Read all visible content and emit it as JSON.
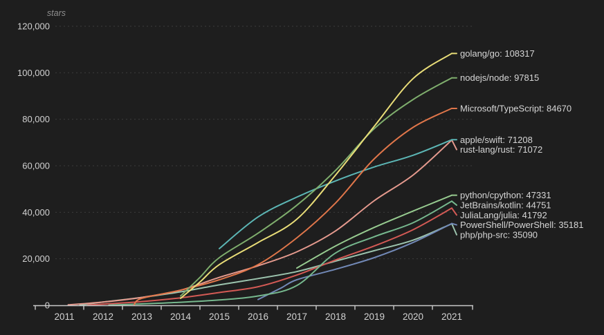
{
  "chart": {
    "y_axis_title": "stars",
    "colors": {
      "background": "#1e1e1e",
      "axis_line": "#c9c9c9",
      "grid_line": "#3c3c3c",
      "tick_label": "#d2d2d2",
      "series_label": "#d6d6d6",
      "axis_title": "#8e8e8e"
    }
  },
  "chart_data": {
    "type": "line",
    "title": "",
    "xlabel": "",
    "ylabel": "stars",
    "grid": "horizontal-dashed",
    "legend_position": "right-end-labels",
    "xlim": [
      2010.2,
      2021.55
    ],
    "ylim": [
      0,
      120000
    ],
    "x_ticks": [
      "2011",
      "2012",
      "2013",
      "2014",
      "2015",
      "2016",
      "2017",
      "2018",
      "2019",
      "2020",
      "2021"
    ],
    "x_tick_years": [
      2011,
      2012,
      2013,
      2014,
      2015,
      2016,
      2017,
      2018,
      2019,
      2020,
      2021
    ],
    "y_ticks": [
      {
        "value": 0,
        "label": "0"
      },
      {
        "value": 20000,
        "label": "20,000"
      },
      {
        "value": 40000,
        "label": "40,000"
      },
      {
        "value": 60000,
        "label": "60,000"
      },
      {
        "value": 80000,
        "label": "80,000"
      },
      {
        "value": 100000,
        "label": "100,000"
      },
      {
        "value": 120000,
        "label": "120,000"
      }
    ],
    "series": [
      {
        "name": "golang/go",
        "final_value": 108317,
        "end_label": "golang/go: 108317",
        "color": "#e9dd78",
        "points": [
          [
            2014,
            3000
          ],
          [
            2014.5,
            10000
          ],
          [
            2015,
            17500
          ],
          [
            2016,
            27000
          ],
          [
            2017,
            37000
          ],
          [
            2018,
            56000
          ],
          [
            2019,
            77000
          ],
          [
            2020,
            97500
          ],
          [
            2021,
            108317
          ]
        ]
      },
      {
        "name": "nodejs/node",
        "final_value": 97815,
        "end_label": "nodejs/node: 97815",
        "color": "#7fae6d",
        "points": [
          [
            2014,
            4000
          ],
          [
            2014.5,
            12000
          ],
          [
            2015,
            20500
          ],
          [
            2016,
            31000
          ],
          [
            2017,
            43000
          ],
          [
            2018,
            58000
          ],
          [
            2019,
            76000
          ],
          [
            2020,
            88500
          ],
          [
            2021,
            97815
          ]
        ]
      },
      {
        "name": "Microsoft/TypeScript",
        "final_value": 84670,
        "end_label": "Microsoft/TypeScript: 84670",
        "color": "#e0764a",
        "points": [
          [
            2012.8,
            300
          ],
          [
            2013,
            3000
          ],
          [
            2014,
            6500
          ],
          [
            2015,
            11000
          ],
          [
            2016,
            17500
          ],
          [
            2017,
            29000
          ],
          [
            2018,
            44000
          ],
          [
            2019,
            63000
          ],
          [
            2020,
            76500
          ],
          [
            2021,
            84670
          ]
        ]
      },
      {
        "name": "apple/swift",
        "final_value": 71208,
        "end_label": "apple/swift: 71208",
        "color": "#5cb6b5",
        "points": [
          [
            2015,
            24400
          ],
          [
            2016,
            38000
          ],
          [
            2017,
            46500
          ],
          [
            2018,
            53500
          ],
          [
            2019,
            59500
          ],
          [
            2020,
            64500
          ],
          [
            2021,
            71208
          ]
        ]
      },
      {
        "name": "rust-lang/rust",
        "final_value": 71072,
        "end_label": "rust-lang/rust: 71072",
        "color": "#e59a8e",
        "points": [
          [
            2011.1,
            200
          ],
          [
            2012,
            1400
          ],
          [
            2013,
            3400
          ],
          [
            2014,
            6500
          ],
          [
            2015,
            12000
          ],
          [
            2016,
            17000
          ],
          [
            2017,
            23000
          ],
          [
            2018,
            32000
          ],
          [
            2019,
            45000
          ],
          [
            2020,
            56000
          ],
          [
            2021,
            71072
          ]
        ]
      },
      {
        "name": "python/cpython",
        "final_value": 47331,
        "end_label": "python/cpython: 47331",
        "color": "#97cb90",
        "points": [
          [
            2017,
            16000
          ],
          [
            2018,
            25500
          ],
          [
            2019,
            33500
          ],
          [
            2020,
            40500
          ],
          [
            2021,
            47331
          ]
        ]
      },
      {
        "name": "JetBrains/kotlin",
        "final_value": 44751,
        "end_label": "JetBrains/kotlin: 44751",
        "color": "#76b88e",
        "points": [
          [
            2012.15,
            100
          ],
          [
            2013,
            600
          ],
          [
            2014,
            1300
          ],
          [
            2015,
            2300
          ],
          [
            2016,
            4000
          ],
          [
            2017,
            8500
          ],
          [
            2018,
            22500
          ],
          [
            2019,
            29500
          ],
          [
            2020,
            35500
          ],
          [
            2021,
            44751
          ]
        ]
      },
      {
        "name": "JuliaLang/julia",
        "final_value": 41792,
        "end_label": "JuliaLang/julia: 41792",
        "color": "#d45a55",
        "points": [
          [
            2011.6,
            100
          ],
          [
            2012,
            500
          ],
          [
            2013,
            1600
          ],
          [
            2014,
            3200
          ],
          [
            2015,
            5500
          ],
          [
            2016,
            8000
          ],
          [
            2017,
            13000
          ],
          [
            2018,
            19500
          ],
          [
            2019,
            25500
          ],
          [
            2020,
            32500
          ],
          [
            2021,
            41792
          ]
        ]
      },
      {
        "name": "PowerShell/PowerShell",
        "final_value": 35181,
        "end_label": "PowerShell/PowerShell: 35181",
        "color": "#7289b7",
        "points": [
          [
            2016,
            2500
          ],
          [
            2016.6,
            7500
          ],
          [
            2017,
            11000
          ],
          [
            2018,
            15500
          ],
          [
            2019,
            20500
          ],
          [
            2020,
            27000
          ],
          [
            2021,
            35181
          ]
        ]
      },
      {
        "name": "php/php-src",
        "final_value": 35090,
        "end_label": "php/php-src: 35090",
        "color": "#9cc4ae",
        "points": [
          [
            2011.4,
            100
          ],
          [
            2012,
            1400
          ],
          [
            2013,
            3400
          ],
          [
            2014,
            5800
          ],
          [
            2015,
            8800
          ],
          [
            2016,
            11500
          ],
          [
            2017,
            14500
          ],
          [
            2018,
            19000
          ],
          [
            2019,
            23500
          ],
          [
            2020,
            28000
          ],
          [
            2021,
            35090
          ]
        ]
      }
    ]
  }
}
